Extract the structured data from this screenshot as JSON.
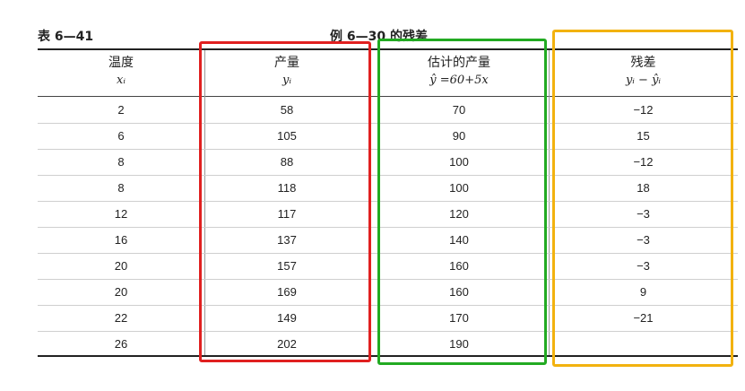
{
  "table_label": "表 6—41",
  "caption": "例 6—30 的残差",
  "columns": [
    {
      "title": "温度",
      "sub": "xᵢ"
    },
    {
      "title": "产量",
      "sub": "yᵢ"
    },
    {
      "title": "估计的产量",
      "sub": "ŷ =60+5x"
    },
    {
      "title": "残差",
      "sub": "yᵢ − ŷᵢ"
    }
  ],
  "rows": [
    [
      "2",
      "58",
      "70",
      "−12"
    ],
    [
      "6",
      "105",
      "90",
      "15"
    ],
    [
      "8",
      "88",
      "100",
      "−12"
    ],
    [
      "8",
      "118",
      "100",
      "18"
    ],
    [
      "12",
      "117",
      "120",
      "−3"
    ],
    [
      "16",
      "137",
      "140",
      "−3"
    ],
    [
      "20",
      "157",
      "160",
      "−3"
    ],
    [
      "20",
      "169",
      "160",
      "9"
    ],
    [
      "22",
      "149",
      "170",
      "−21"
    ],
    [
      "26",
      "202",
      "190",
      ""
    ]
  ],
  "highlight_colors": {
    "yield_column": "#e02020",
    "estimated_column": "#22aa22",
    "residual_column": "#f2b20f"
  }
}
